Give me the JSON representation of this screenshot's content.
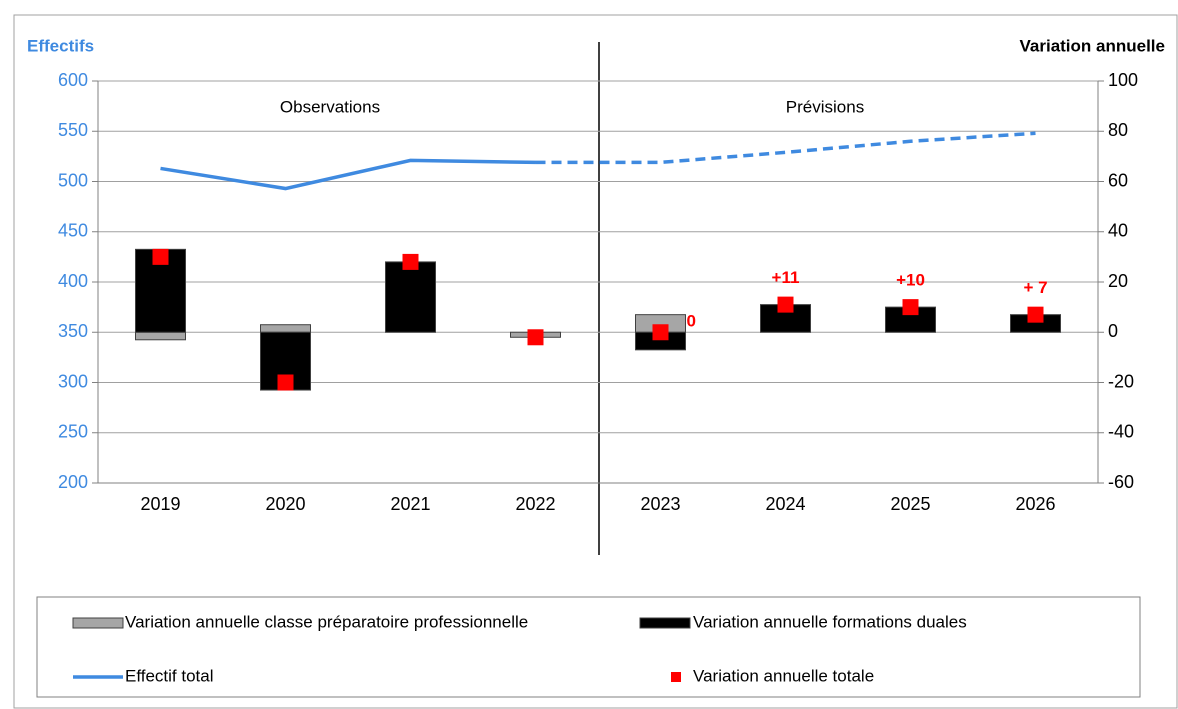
{
  "chart_data": {
    "type": "bar",
    "y_axis_label": "Effectifs",
    "y2_axis_label": "Variation annuelle",
    "annotations": [
      "Observations",
      "Prévisions"
    ],
    "categories": [
      "2019",
      "2020",
      "2021",
      "2022",
      "2023",
      "2024",
      "2025",
      "2026"
    ],
    "ylim": [
      200,
      600
    ],
    "yticks": [
      200,
      250,
      300,
      350,
      400,
      450,
      500,
      550,
      600
    ],
    "y2lim": [
      -60,
      100
    ],
    "y2ticks": [
      -60,
      -40,
      -20,
      0,
      20,
      40,
      60,
      80,
      100
    ],
    "grid": true,
    "dashed_from": 3,
    "series": [
      {
        "name": "Variation annuelle classe préparatoire professionnelle",
        "type": "bar",
        "axis": "y2",
        "color": "#a6a6a6",
        "values": [
          -3,
          3,
          0,
          -2,
          7,
          0,
          0,
          0
        ]
      },
      {
        "name": "Variation annuelle formations duales",
        "type": "bar",
        "axis": "y2",
        "color": "#000000",
        "values": [
          33,
          -23,
          28,
          0,
          -7,
          11,
          10,
          7
        ]
      },
      {
        "name": "Effectif total",
        "type": "line",
        "axis": "y",
        "color": "#3f8ae0",
        "values": [
          513,
          493,
          521,
          519,
          519,
          529,
          540,
          548
        ]
      },
      {
        "name": "Variation annuelle totale",
        "type": "scatter",
        "axis": "y2",
        "color": "#ff0000",
        "values": [
          30,
          -20,
          28,
          -2,
          0,
          11,
          10,
          7
        ],
        "value_labels": [
          null,
          null,
          null,
          null,
          "0",
          "+11",
          "+10",
          "+ 7"
        ]
      }
    ]
  }
}
